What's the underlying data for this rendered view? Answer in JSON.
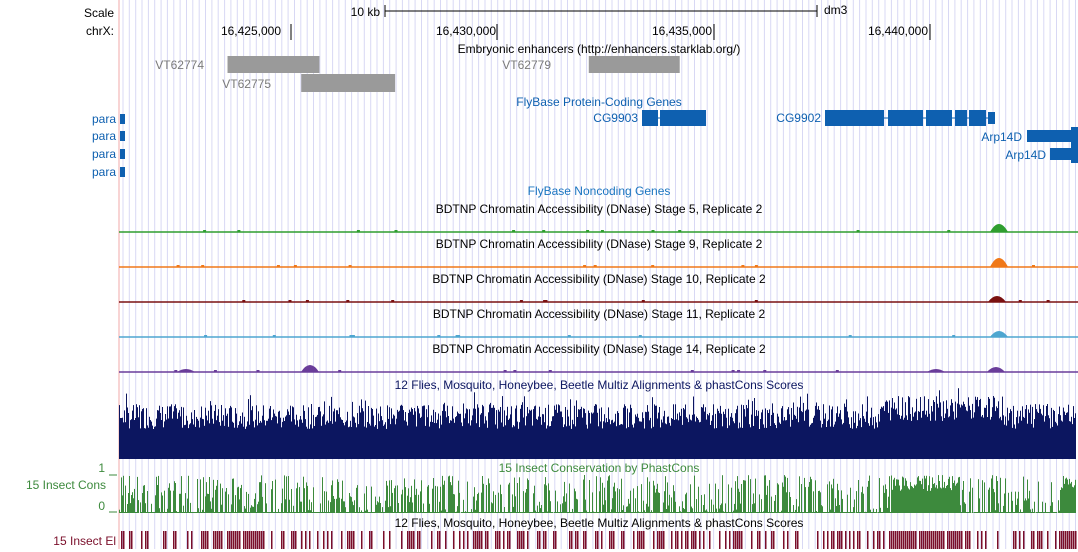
{
  "ruler": {
    "scale_label": "Scale",
    "chrom_label": "chrX:",
    "scale_bar_label": "10 kb",
    "assembly": "dm3",
    "positions": [
      "16,425,000",
      "16,430,000",
      "16,435,000",
      "16,440,000"
    ]
  },
  "tracks": {
    "enhancers": {
      "title": "Embryonic enhancers (http://enhancers.starklab.org/)",
      "color": "#7a7a7a",
      "items": [
        {
          "name": "VT62774",
          "start": 16423510,
          "end": 16425668
        },
        {
          "name": "VT62775",
          "start": 16425240,
          "end": 16427444
        },
        {
          "name": "VT62779",
          "start": 16431990,
          "end": 16434125
        }
      ]
    },
    "protein_genes": {
      "title": "FlyBase Protein-Coding Genes",
      "color": "#0e60b0",
      "left_labels": [
        "para",
        "para",
        "para",
        "para"
      ],
      "genes": [
        {
          "name": "CG9903",
          "start": 16433505,
          "end": 16435003
        },
        {
          "name": "CG9902",
          "start": 16436986,
          "end": 16440870
        },
        {
          "name": "Arp14D",
          "start": 16441732,
          "end": 16442917
        },
        {
          "name": "Arp14D",
          "start": 16441732,
          "end": 16442917
        }
      ]
    },
    "noncoding": {
      "title": "FlyBase Noncoding Genes",
      "color": "#1a75c0"
    },
    "dnase": [
      {
        "title": "BDTNP Chromatin Accessibility (DNase) Stage 5, Replicate 2",
        "color": "#2f9e2f"
      },
      {
        "title": "BDTNP Chromatin Accessibility (DNase) Stage 9, Replicate 2",
        "color": "#f07818"
      },
      {
        "title": "BDTNP Chromatin Accessibility (DNase) Stage 10, Replicate 2",
        "color": "#7a1010"
      },
      {
        "title": "BDTNP Chromatin Accessibility (DNase) Stage 11, Replicate 2",
        "color": "#4ea6d0"
      },
      {
        "title": "BDTNP Chromatin Accessibility (DNase) Stage 14, Replicate 2",
        "color": "#6a3d9a"
      }
    ],
    "multiz": {
      "title": "12 Flies, Mosquito, Honeybee, Beetle Multiz Alignments & phastCons Scores",
      "color": "#0c1660"
    },
    "insect_cons": {
      "title": "15 Insect Conservation by PhastCons",
      "side_label": "15 Insect Cons",
      "ymax_label": "1",
      "ymin_label": "0",
      "color": "#3d8a3d"
    },
    "multiz2": {
      "title": "12 Flies, Mosquito, Honeybee, Beetle Multiz Alignments & phastCons Scores",
      "side_label": "15 Insect El",
      "color": "#7a0e2a"
    }
  }
}
